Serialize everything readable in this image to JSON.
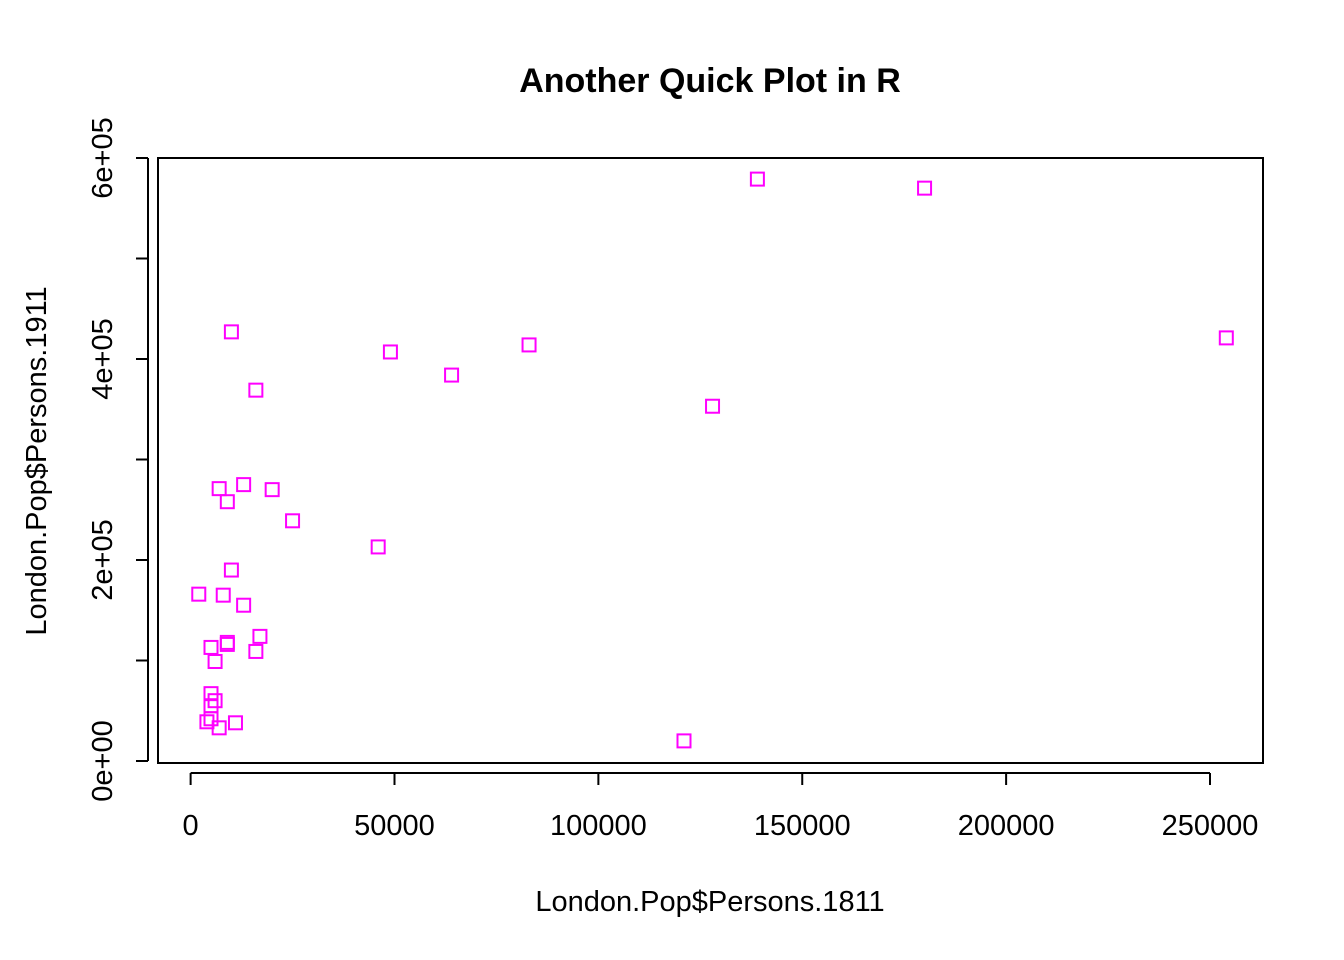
{
  "chart_data": {
    "type": "scatter",
    "title": "Another Quick Plot in R",
    "xlabel": "London.Pop$Persons.1811",
    "ylabel": "London.Pop$Persons.1911",
    "xlim": [
      -8000,
      263000
    ],
    "ylim": [
      -2000,
      600000
    ],
    "x_ticks": [
      0,
      50000,
      100000,
      150000,
      200000,
      250000
    ],
    "x_tick_labels": [
      "0",
      "50000",
      "100000",
      "150000",
      "200000",
      "250000"
    ],
    "y_ticks": [
      0,
      100000,
      200000,
      300000,
      400000,
      500000,
      600000
    ],
    "y_tick_labels": [
      "0e+00",
      "",
      "2e+05",
      "",
      "4e+05",
      "",
      "6e+05"
    ],
    "marker": "open-square",
    "marker_color": "#ff00ff",
    "grid": false,
    "points": [
      {
        "x": 139000,
        "y": 579000
      },
      {
        "x": 180000,
        "y": 570000
      },
      {
        "x": 10000,
        "y": 427000
      },
      {
        "x": 254000,
        "y": 421000
      },
      {
        "x": 83000,
        "y": 414000
      },
      {
        "x": 49000,
        "y": 407000
      },
      {
        "x": 64000,
        "y": 384000
      },
      {
        "x": 16000,
        "y": 369000
      },
      {
        "x": 128000,
        "y": 353000
      },
      {
        "x": 13000,
        "y": 275000
      },
      {
        "x": 7000,
        "y": 271000
      },
      {
        "x": 20000,
        "y": 270000
      },
      {
        "x": 9000,
        "y": 258000
      },
      {
        "x": 25000,
        "y": 239000
      },
      {
        "x": 46000,
        "y": 213000
      },
      {
        "x": 10000,
        "y": 190000
      },
      {
        "x": 2000,
        "y": 166000
      },
      {
        "x": 8000,
        "y": 165000
      },
      {
        "x": 13000,
        "y": 155000
      },
      {
        "x": 17000,
        "y": 124000
      },
      {
        "x": 9000,
        "y": 118000
      },
      {
        "x": 9000,
        "y": 116000
      },
      {
        "x": 5000,
        "y": 113000
      },
      {
        "x": 16000,
        "y": 109000
      },
      {
        "x": 6000,
        "y": 99000
      },
      {
        "x": 5000,
        "y": 67000
      },
      {
        "x": 6000,
        "y": 60000
      },
      {
        "x": 5000,
        "y": 55000
      },
      {
        "x": 5000,
        "y": 42000
      },
      {
        "x": 4000,
        "y": 39000
      },
      {
        "x": 11000,
        "y": 38000
      },
      {
        "x": 7000,
        "y": 33000
      },
      {
        "x": 121000,
        "y": 20000
      }
    ]
  }
}
